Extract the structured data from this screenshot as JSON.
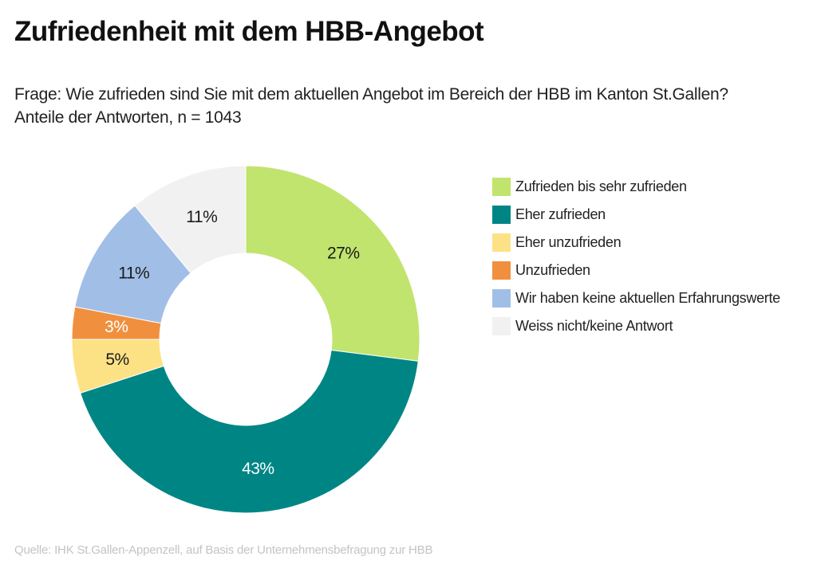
{
  "title": "Zufriedenheit mit dem HBB-Angebot",
  "subtitle": "Frage: Wie zufrieden sind Sie mit dem aktuellen Angebot im Bereich der HBB im Kanton St.Gallen? Anteile der Antworten, n = 1043",
  "source": "Quelle: IHK St.Gallen-Appenzell, auf Basis der Unternehmensbefragung zur HBB",
  "chart_data": {
    "type": "pie",
    "variant": "donut",
    "title": "Zufriedenheit mit dem HBB-Angebot",
    "n": 1043,
    "legend_position": "right",
    "slices": [
      {
        "label": "Zufrieden bis sehr zufrieden",
        "value": 27,
        "display": "27%",
        "color": "#c1e46e",
        "label_color": "#1a1a1a"
      },
      {
        "label": "Eher zufrieden",
        "value": 43,
        "display": "43%",
        "color": "#008585",
        "label_color": "#ffffff"
      },
      {
        "label": "Eher unzufrieden",
        "value": 5,
        "display": "5%",
        "color": "#fde185",
        "label_color": "#1a1a1a"
      },
      {
        "label": "Unzufrieden",
        "value": 3,
        "display": "3%",
        "color": "#f0903e",
        "label_color": "#ffffff"
      },
      {
        "label": "Wir haben keine aktuellen Erfahrungswerte",
        "value": 11,
        "display": "11%",
        "color": "#a1bfe6",
        "label_color": "#1a1a1a"
      },
      {
        "label": "Weiss nicht/keine Antwort",
        "value": 11,
        "display": "11%",
        "color": "#f1f1f1",
        "label_color": "#1a1a1a"
      }
    ]
  }
}
